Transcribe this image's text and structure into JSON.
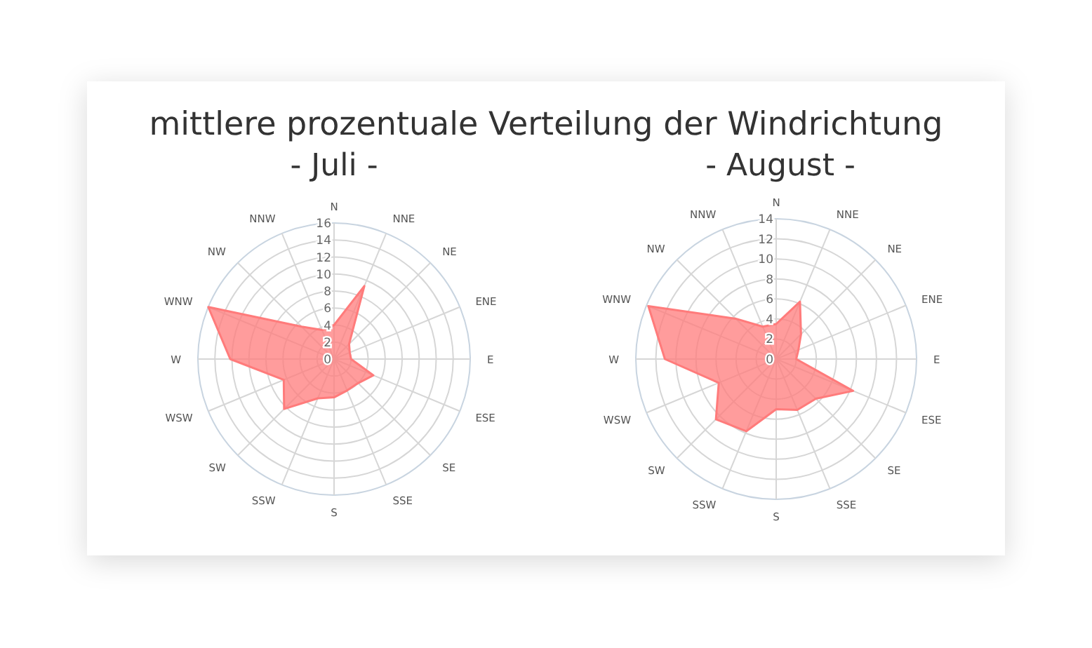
{
  "chart_data": [
    {
      "type": "radar",
      "title": "mittlere prozentuale Verteilung der Windrichtung",
      "subtitle": "- Juli -",
      "categories": [
        "N",
        "NNE",
        "NE",
        "ENE",
        "E",
        "ESE",
        "SE",
        "SSE",
        "S",
        "SSW",
        "SW",
        "WSW",
        "W",
        "WNW",
        "NW",
        "NNW"
      ],
      "ylim": [
        0,
        16
      ],
      "yticks": [
        0,
        2,
        4,
        6,
        8,
        10,
        12,
        14,
        16
      ],
      "grid": true,
      "series": [
        {
          "color": "#ff7b7b",
          "values": [
            4,
            9.3,
            2.5,
            2,
            2,
            5,
            4,
            4,
            4.5,
            5,
            8.3,
            6.4,
            12.2,
            16,
            5.4,
            3.7
          ]
        }
      ]
    },
    {
      "type": "radar",
      "subtitle": "- August -",
      "categories": [
        "N",
        "NNE",
        "NE",
        "ENE",
        "E",
        "ESE",
        "SE",
        "SSE",
        "S",
        "SSW",
        "SW",
        "WSW",
        "W",
        "WNW",
        "NW",
        "NNW"
      ],
      "ylim": [
        0,
        14
      ],
      "yticks": [
        0,
        2,
        4,
        6,
        8,
        10,
        12,
        14
      ],
      "grid": true,
      "series": [
        {
          "color": "#ff7b7b",
          "values": [
            3.5,
            6.2,
            3.5,
            2.4,
            2,
            8.3,
            5.6,
            5.5,
            5,
            7.8,
            8.5,
            6.2,
            11.1,
            13.8,
            5.7,
            3.5
          ]
        }
      ]
    }
  ]
}
